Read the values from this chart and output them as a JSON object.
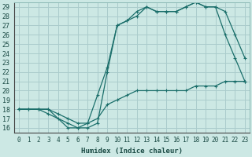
{
  "xlabel": "Humidex (Indice chaleur)",
  "bg_color": "#cce8e4",
  "grid_color": "#aacccc",
  "line_color": "#1a6e6a",
  "xlim": [
    -0.5,
    23.5
  ],
  "ylim": [
    15.5,
    29.5
  ],
  "xticks": [
    0,
    1,
    2,
    3,
    4,
    5,
    6,
    7,
    8,
    9,
    10,
    11,
    12,
    13,
    14,
    15,
    16,
    17,
    18,
    19,
    20,
    21,
    22,
    23
  ],
  "yticks": [
    16,
    17,
    18,
    19,
    20,
    21,
    22,
    23,
    24,
    25,
    26,
    27,
    28,
    29
  ],
  "series1_x": [
    0,
    1,
    2,
    3,
    4,
    5,
    6,
    7,
    8,
    9,
    10,
    11,
    12,
    13,
    14,
    15,
    16,
    17,
    18,
    19,
    20,
    21,
    22,
    23
  ],
  "series1_y": [
    18,
    18,
    18,
    18,
    17.5,
    17,
    16.5,
    16.5,
    17,
    18.5,
    19,
    19.5,
    20,
    20,
    20,
    20,
    20,
    20,
    20.5,
    20.5,
    20.5,
    21,
    21,
    21
  ],
  "series2_x": [
    0,
    1,
    2,
    3,
    4,
    5,
    6,
    7,
    8,
    9,
    10,
    11,
    12,
    13,
    14,
    15,
    16,
    17,
    18,
    19,
    20,
    21,
    22,
    23
  ],
  "series2_y": [
    18,
    18,
    18,
    17.5,
    17,
    16.5,
    16,
    16,
    16.5,
    22,
    27,
    27.5,
    28,
    29,
    28.5,
    28.5,
    28.5,
    29,
    29.5,
    29,
    29,
    26,
    23.5,
    21
  ],
  "series3_x": [
    0,
    2,
    3,
    5,
    6,
    7,
    8,
    9,
    10,
    11,
    12,
    13,
    14,
    15,
    16,
    17,
    18,
    19,
    20,
    21,
    22,
    23
  ],
  "series3_y": [
    18,
    18,
    18,
    16,
    16,
    16.5,
    19.5,
    22.5,
    27,
    27.5,
    28.5,
    29,
    28.5,
    28.5,
    28.5,
    29,
    29.5,
    29,
    29,
    28.5,
    26,
    23.5
  ]
}
